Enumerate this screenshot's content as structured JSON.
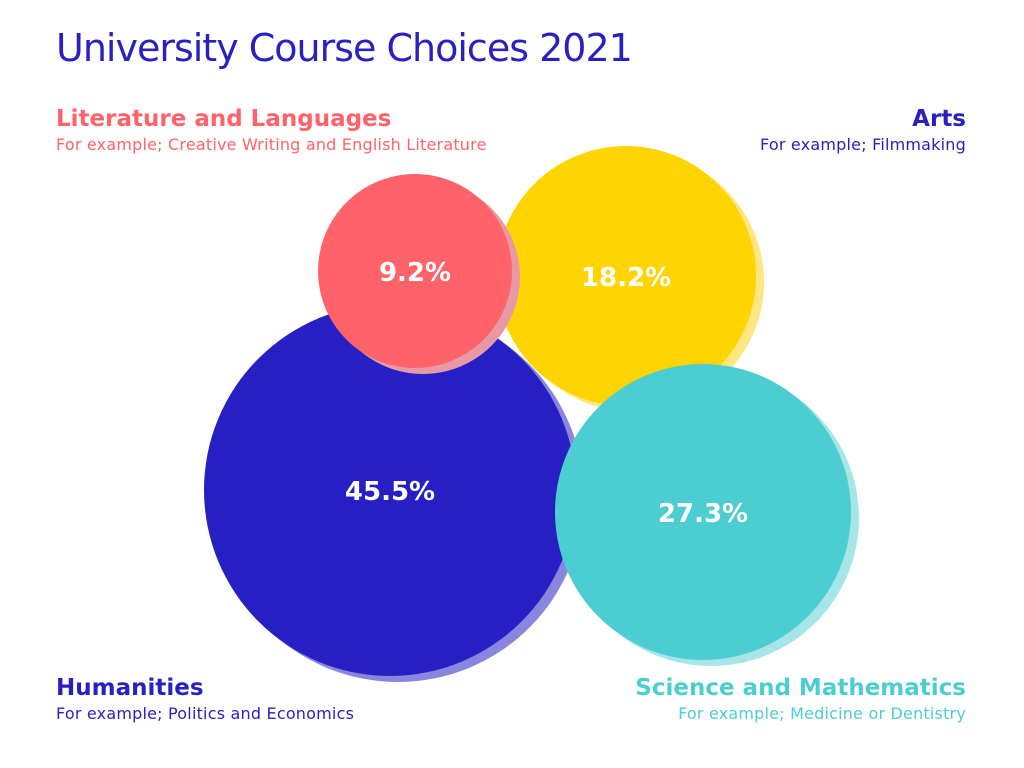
{
  "title": "University Course Choices 2021",
  "colors": {
    "title": "#2a1fbf",
    "background": "#ffffff"
  },
  "chart_data": {
    "type": "bubble",
    "title": "University Course Choices 2021",
    "unit": "%",
    "series": [
      {
        "name": "Literature and Languages",
        "example": "For example;  Creative Writing and English Literature",
        "value": 9.2,
        "label": "9.2%",
        "color": "#ff6268",
        "shadow": "#e79aa6",
        "text_color": "#ff6268",
        "legend_position": "top-left"
      },
      {
        "name": "Arts",
        "example": "For example;  Filmmaking",
        "value": 18.2,
        "label": "18.2%",
        "color": "#ffd400",
        "shadow": "#ffe680",
        "text_color": "#2a1fbf",
        "legend_position": "top-right"
      },
      {
        "name": "Humanities",
        "example": "For example;  Politics and Economics",
        "value": 45.5,
        "label": "45.5%",
        "color": "#2620c4",
        "shadow": "#8a86e0",
        "text_color": "#2a1fbf",
        "legend_position": "bottom-left"
      },
      {
        "name": "Science and Mathematics",
        "example": "For example;  Medicine or Dentistry",
        "value": 27.3,
        "label": "27.3%",
        "color": "#4ccdd1",
        "shadow": "#a6e6e8",
        "text_color": "#4ccdd1",
        "legend_position": "bottom-right"
      }
    ]
  }
}
